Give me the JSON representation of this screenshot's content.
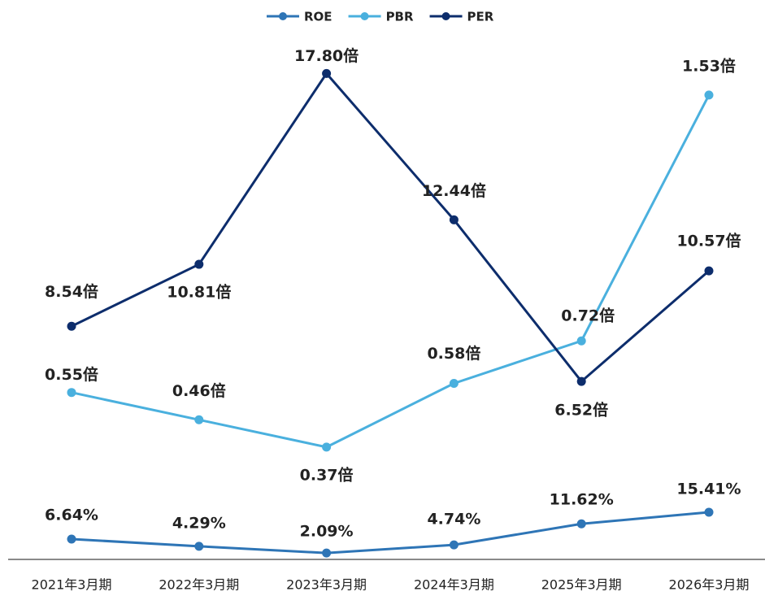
{
  "chart_data": {
    "type": "line",
    "categories": [
      "2021年3月期",
      "2022年3月期",
      "2023年3月期",
      "2024年3月期",
      "2025年3月期",
      "2026年3月期"
    ],
    "series": [
      {
        "name": "ROE",
        "color": "#2e75b6",
        "ylim": [
          0,
          172
        ],
        "values": [
          6.64,
          4.29,
          2.09,
          4.74,
          11.62,
          15.41
        ],
        "value_labels": [
          "6.64%",
          "4.29%",
          "2.09%",
          "4.74%",
          "11.62%",
          "15.41%"
        ]
      },
      {
        "name": "PBR",
        "color": "#4ab0de",
        "ylim": [
          0,
          1.736
        ],
        "values": [
          0.55,
          0.46,
          0.37,
          0.58,
          0.72,
          1.53
        ],
        "value_labels": [
          "0.55倍",
          "0.46倍",
          "0.37倍",
          "0.58倍",
          "0.72倍",
          "1.53倍"
        ]
      },
      {
        "name": "PER",
        "color": "#0d2d6c",
        "ylim": [
          0,
          19.3
        ],
        "values": [
          8.54,
          10.81,
          17.8,
          12.44,
          6.52,
          10.57
        ],
        "value_labels": [
          "8.54倍",
          "10.81倍",
          "17.80倍",
          "12.44倍",
          "6.52倍",
          "10.57倍"
        ]
      }
    ],
    "legend": "top"
  }
}
